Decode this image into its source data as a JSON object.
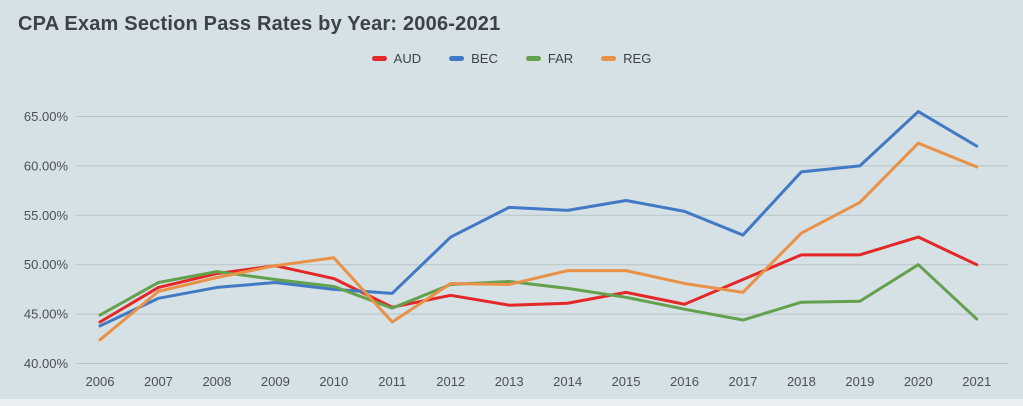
{
  "chart": {
    "background": "#d5e1e4",
    "bottom_strip_color": "#e9eef0",
    "gridline_color": "#b8c4c6",
    "title_color": "#3d4247",
    "axis_text_color": "#4c5155"
  },
  "chart_data": {
    "type": "line",
    "title": "CPA Exam Section Pass Rates by Year: 2006-2021",
    "x": [
      "2006",
      "2007",
      "2008",
      "2009",
      "2010",
      "2011",
      "2012",
      "2013",
      "2014",
      "2015",
      "2016",
      "2017",
      "2018",
      "2019",
      "2020",
      "2021"
    ],
    "series": [
      {
        "name": "AUD",
        "color": "#e52728",
        "values": [
          44.2,
          47.7,
          49.1,
          49.9,
          48.6,
          45.7,
          46.9,
          45.9,
          46.1,
          47.2,
          46.0,
          48.5,
          51.0,
          51.0,
          52.8,
          50.0
        ]
      },
      {
        "name": "BEC",
        "color": "#4179c5",
        "values": [
          43.8,
          46.6,
          47.7,
          48.2,
          47.5,
          47.1,
          52.8,
          55.8,
          55.5,
          56.5,
          55.4,
          53.0,
          59.4,
          60.0,
          65.5,
          62.0
        ]
      },
      {
        "name": "FAR",
        "color": "#63a14d",
        "values": [
          44.9,
          48.2,
          49.3,
          48.5,
          47.8,
          45.6,
          48.0,
          48.3,
          47.6,
          46.7,
          45.5,
          44.4,
          46.2,
          46.3,
          50.0,
          44.5
        ]
      },
      {
        "name": "REG",
        "color": "#e89147",
        "values": [
          42.4,
          47.3,
          48.7,
          49.9,
          50.7,
          44.2,
          48.1,
          48.0,
          49.4,
          49.4,
          48.1,
          47.2,
          53.2,
          56.3,
          62.3,
          59.9
        ]
      }
    ],
    "ylabel": "",
    "xlabel": "",
    "ylim": [
      40,
      66.7
    ],
    "yticks": [
      "40.00%",
      "45.00%",
      "50.00%",
      "55.00%",
      "60.00%",
      "65.00%"
    ],
    "grid": true,
    "legend_position": "top"
  }
}
